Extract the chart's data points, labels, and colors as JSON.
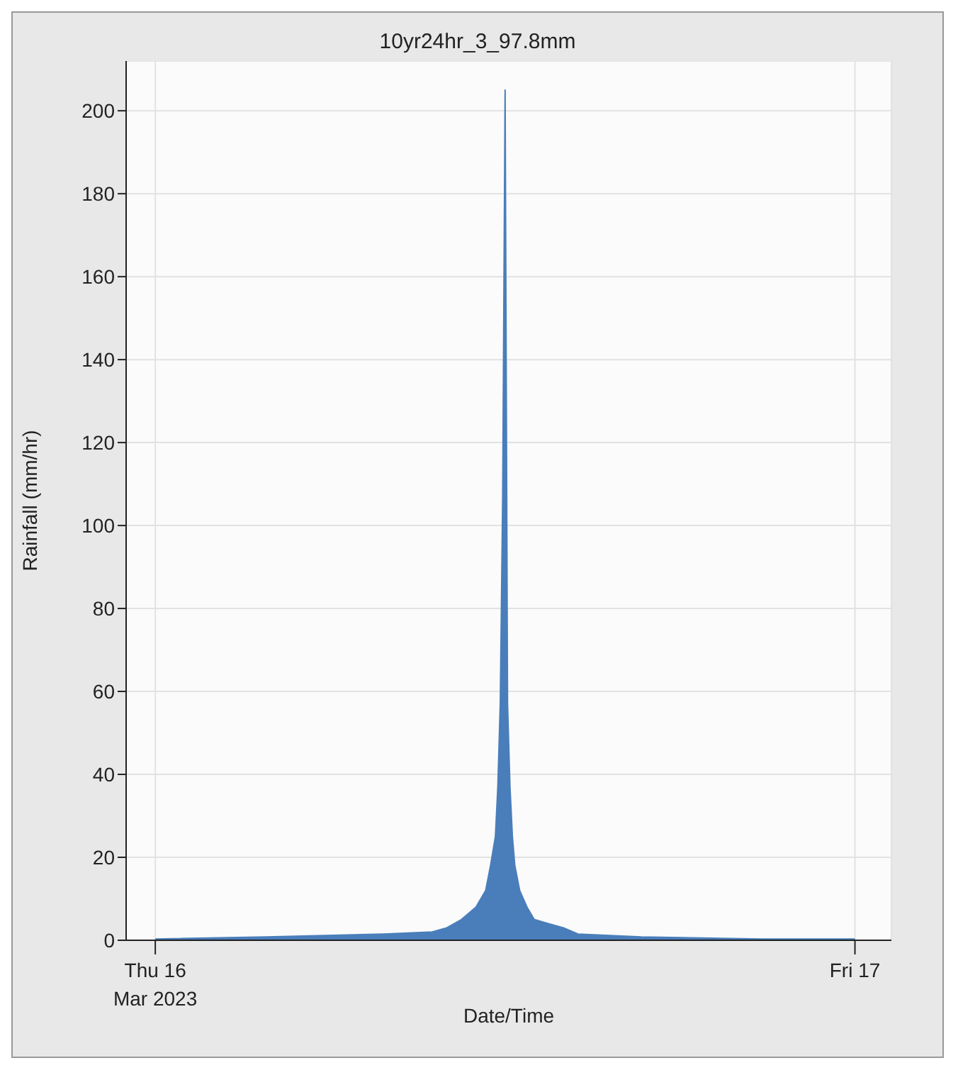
{
  "chart_data": {
    "type": "area",
    "title": "10yr24hr_3_97.8mm",
    "xlabel": "Date/Time",
    "ylabel": "Rainfall (mm/hr)",
    "x": [
      "2023-03-16T00:00",
      "2023-03-16T03:50",
      "2023-03-16T07:50",
      "2023-03-16T09:30",
      "2023-03-16T10:00",
      "2023-03-16T10:30",
      "2023-03-16T11:00",
      "2023-03-16T11:20",
      "2023-03-16T11:30",
      "2023-03-16T11:40",
      "2023-03-16T11:45",
      "2023-03-16T11:50",
      "2023-03-16T11:55",
      "2023-03-16T12:00",
      "2023-03-16T12:05",
      "2023-03-16T12:10",
      "2023-03-16T12:15",
      "2023-03-16T12:20",
      "2023-03-16T12:30",
      "2023-03-16T12:45",
      "2023-03-16T13:00",
      "2023-03-16T13:30",
      "2023-03-16T14:00",
      "2023-03-16T14:30",
      "2023-03-16T16:40",
      "2023-03-16T20:50",
      "2023-03-17T00:00"
    ],
    "series": [
      {
        "color": "#4a7ebb",
        "values": [
          0.3,
          0.8,
          1.5,
          2,
          3,
          5,
          8,
          12,
          18,
          25,
          37,
          57,
          107,
          205,
          57,
          37,
          25,
          18,
          12,
          8,
          5,
          4,
          3,
          1.5,
          0.8,
          0.3,
          0.3
        ]
      }
    ],
    "xlim": [
      "2023-03-15T23:00",
      "2023-03-17T01:15"
    ],
    "xticks": [
      {
        "value": "2023-03-16T00:00",
        "label": "Thu 16\nMar 2023"
      },
      {
        "value": "2023-03-17T00:00",
        "label": "Fri 17"
      }
    ],
    "ylim": [
      0,
      212
    ],
    "yticks": [
      0,
      20,
      40,
      60,
      80,
      100,
      120,
      140,
      160,
      180,
      200
    ],
    "grid": true,
    "legend": false,
    "marker": "none",
    "line_style": "solid"
  }
}
